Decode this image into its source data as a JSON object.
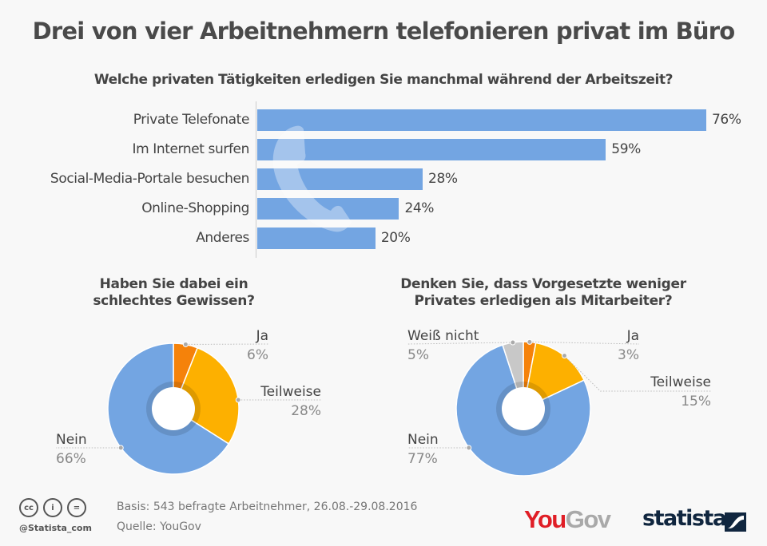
{
  "title": "Drei von vier Arbeitnehmern telefonieren privat im Büro",
  "chart_data": [
    {
      "type": "bar",
      "orientation": "horizontal",
      "title": "Welche privaten Tätigkeiten erledigen Sie manchmal während der Arbeitszeit?",
      "categories": [
        "Private Telefonate",
        "Im Internet surfen",
        "Social-Media-Portale besuchen",
        "Online-Shopping",
        "Anderes"
      ],
      "values": [
        76,
        59,
        28,
        24,
        20
      ],
      "value_labels": [
        "76%",
        "59%",
        "28%",
        "24%",
        "20%"
      ],
      "unit": "%",
      "xlabel": "",
      "ylabel": "",
      "xlim": [
        0,
        76
      ],
      "grid": false,
      "color": "#73a5e2",
      "watermark_icon": "phone-icon"
    },
    {
      "type": "pie",
      "variant": "donut",
      "title": "Haben Sie dabei ein schlechtes Gewissen?",
      "title_lines": [
        "Haben Sie dabei ein",
        "schlechtes Gewissen?"
      ],
      "slices": [
        {
          "label": "Ja",
          "value": 6,
          "value_label": "6%",
          "color": "#f5820a"
        },
        {
          "label": "Teilweise",
          "value": 28,
          "value_label": "28%",
          "color": "#fdb000"
        },
        {
          "label": "Nein",
          "value": 66,
          "value_label": "66%",
          "color": "#73a5e2"
        }
      ]
    },
    {
      "type": "pie",
      "variant": "donut",
      "title": "Denken Sie, dass Vorgesetzte weniger Privates erledigen als Mitarbeiter?",
      "title_lines": [
        "Denken Sie, dass Vorgesetzte weniger",
        "Privates erledigen als Mitarbeiter?"
      ],
      "slices": [
        {
          "label": "Ja",
          "value": 3,
          "value_label": "3%",
          "color": "#f5820a"
        },
        {
          "label": "Teilweise",
          "value": 15,
          "value_label": "15%",
          "color": "#fdb000"
        },
        {
          "label": "Nein",
          "value": 77,
          "value_label": "77%",
          "color": "#73a5e2"
        },
        {
          "label": "Weiß nicht",
          "value": 5,
          "value_label": "5%",
          "color": "#c8c8c8"
        }
      ]
    }
  ],
  "footer": {
    "basis": "Basis: 543 befragte Arbeitnehmer, 26.08.-29.08.2016",
    "source": "Quelle: YouGov",
    "handle": "@Statista_com",
    "license_icons": [
      "cc-icon",
      "attribution-icon",
      "no-derivatives-icon"
    ],
    "cc_glyphs": [
      "cc",
      "i",
      "="
    ],
    "yougov_you": "You",
    "yougov_gov": "Gov",
    "statista": "statista"
  }
}
